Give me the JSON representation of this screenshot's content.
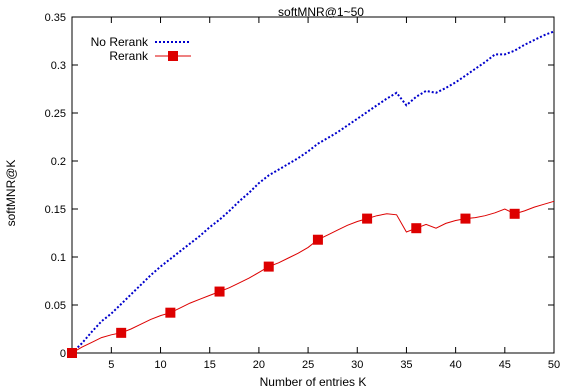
{
  "chart_data": {
    "type": "line",
    "title": "softMNR@1~50",
    "xlabel": "Number of entries K",
    "ylabel": "softMNR@K",
    "xlim": [
      1,
      50
    ],
    "ylim": [
      0,
      0.35
    ],
    "xticks": [
      5,
      10,
      15,
      20,
      25,
      30,
      35,
      40,
      45,
      50
    ],
    "yticks": [
      0,
      0.05,
      0.1,
      0.15,
      0.2,
      0.25,
      0.3,
      0.35
    ],
    "grid": false,
    "legend": "top-left",
    "series": [
      {
        "name": "No Rerank",
        "color": "#0000cc",
        "style": "dotted",
        "marker": "none",
        "x": [
          1,
          2,
          3,
          4,
          5,
          6,
          7,
          8,
          9,
          10,
          11,
          12,
          13,
          14,
          15,
          16,
          17,
          18,
          19,
          20,
          21,
          22,
          23,
          24,
          25,
          26,
          27,
          28,
          29,
          30,
          31,
          32,
          33,
          34,
          35,
          36,
          37,
          38,
          39,
          40,
          41,
          42,
          43,
          44,
          45,
          46,
          47,
          48,
          49,
          50
        ],
        "y": [
          0,
          0.01,
          0.022,
          0.033,
          0.041,
          0.051,
          0.061,
          0.071,
          0.081,
          0.09,
          0.098,
          0.106,
          0.114,
          0.122,
          0.131,
          0.139,
          0.148,
          0.158,
          0.167,
          0.177,
          0.185,
          0.191,
          0.197,
          0.203,
          0.21,
          0.218,
          0.224,
          0.23,
          0.237,
          0.244,
          0.251,
          0.258,
          0.265,
          0.271,
          0.258,
          0.267,
          0.273,
          0.271,
          0.276,
          0.282,
          0.289,
          0.296,
          0.303,
          0.311,
          0.311,
          0.315,
          0.321,
          0.326,
          0.331,
          0.335
        ]
      },
      {
        "name": "Rerank",
        "color": "#dd0000",
        "style": "solid",
        "marker": "square",
        "x": [
          1,
          2,
          3,
          4,
          5,
          6,
          7,
          8,
          9,
          10,
          11,
          12,
          13,
          14,
          15,
          16,
          17,
          18,
          19,
          20,
          21,
          22,
          23,
          24,
          25,
          26,
          27,
          28,
          29,
          30,
          31,
          32,
          33,
          34,
          35,
          36,
          37,
          38,
          39,
          40,
          41,
          42,
          43,
          44,
          45,
          46,
          47,
          48,
          49,
          50
        ],
        "y": [
          0,
          0.006,
          0.011,
          0.016,
          0.019,
          0.021,
          0.025,
          0.03,
          0.035,
          0.039,
          0.042,
          0.047,
          0.052,
          0.056,
          0.06,
          0.064,
          0.068,
          0.073,
          0.078,
          0.084,
          0.09,
          0.094,
          0.099,
          0.104,
          0.11,
          0.118,
          0.123,
          0.128,
          0.133,
          0.137,
          0.14,
          0.143,
          0.145,
          0.144,
          0.126,
          0.13,
          0.134,
          0.13,
          0.135,
          0.138,
          0.14,
          0.141,
          0.143,
          0.146,
          0.15,
          0.145,
          0.148,
          0.152,
          0.155,
          0.158
        ],
        "marker_x": [
          1,
          6,
          11,
          16,
          21,
          26,
          31,
          36,
          41,
          46
        ]
      }
    ]
  }
}
